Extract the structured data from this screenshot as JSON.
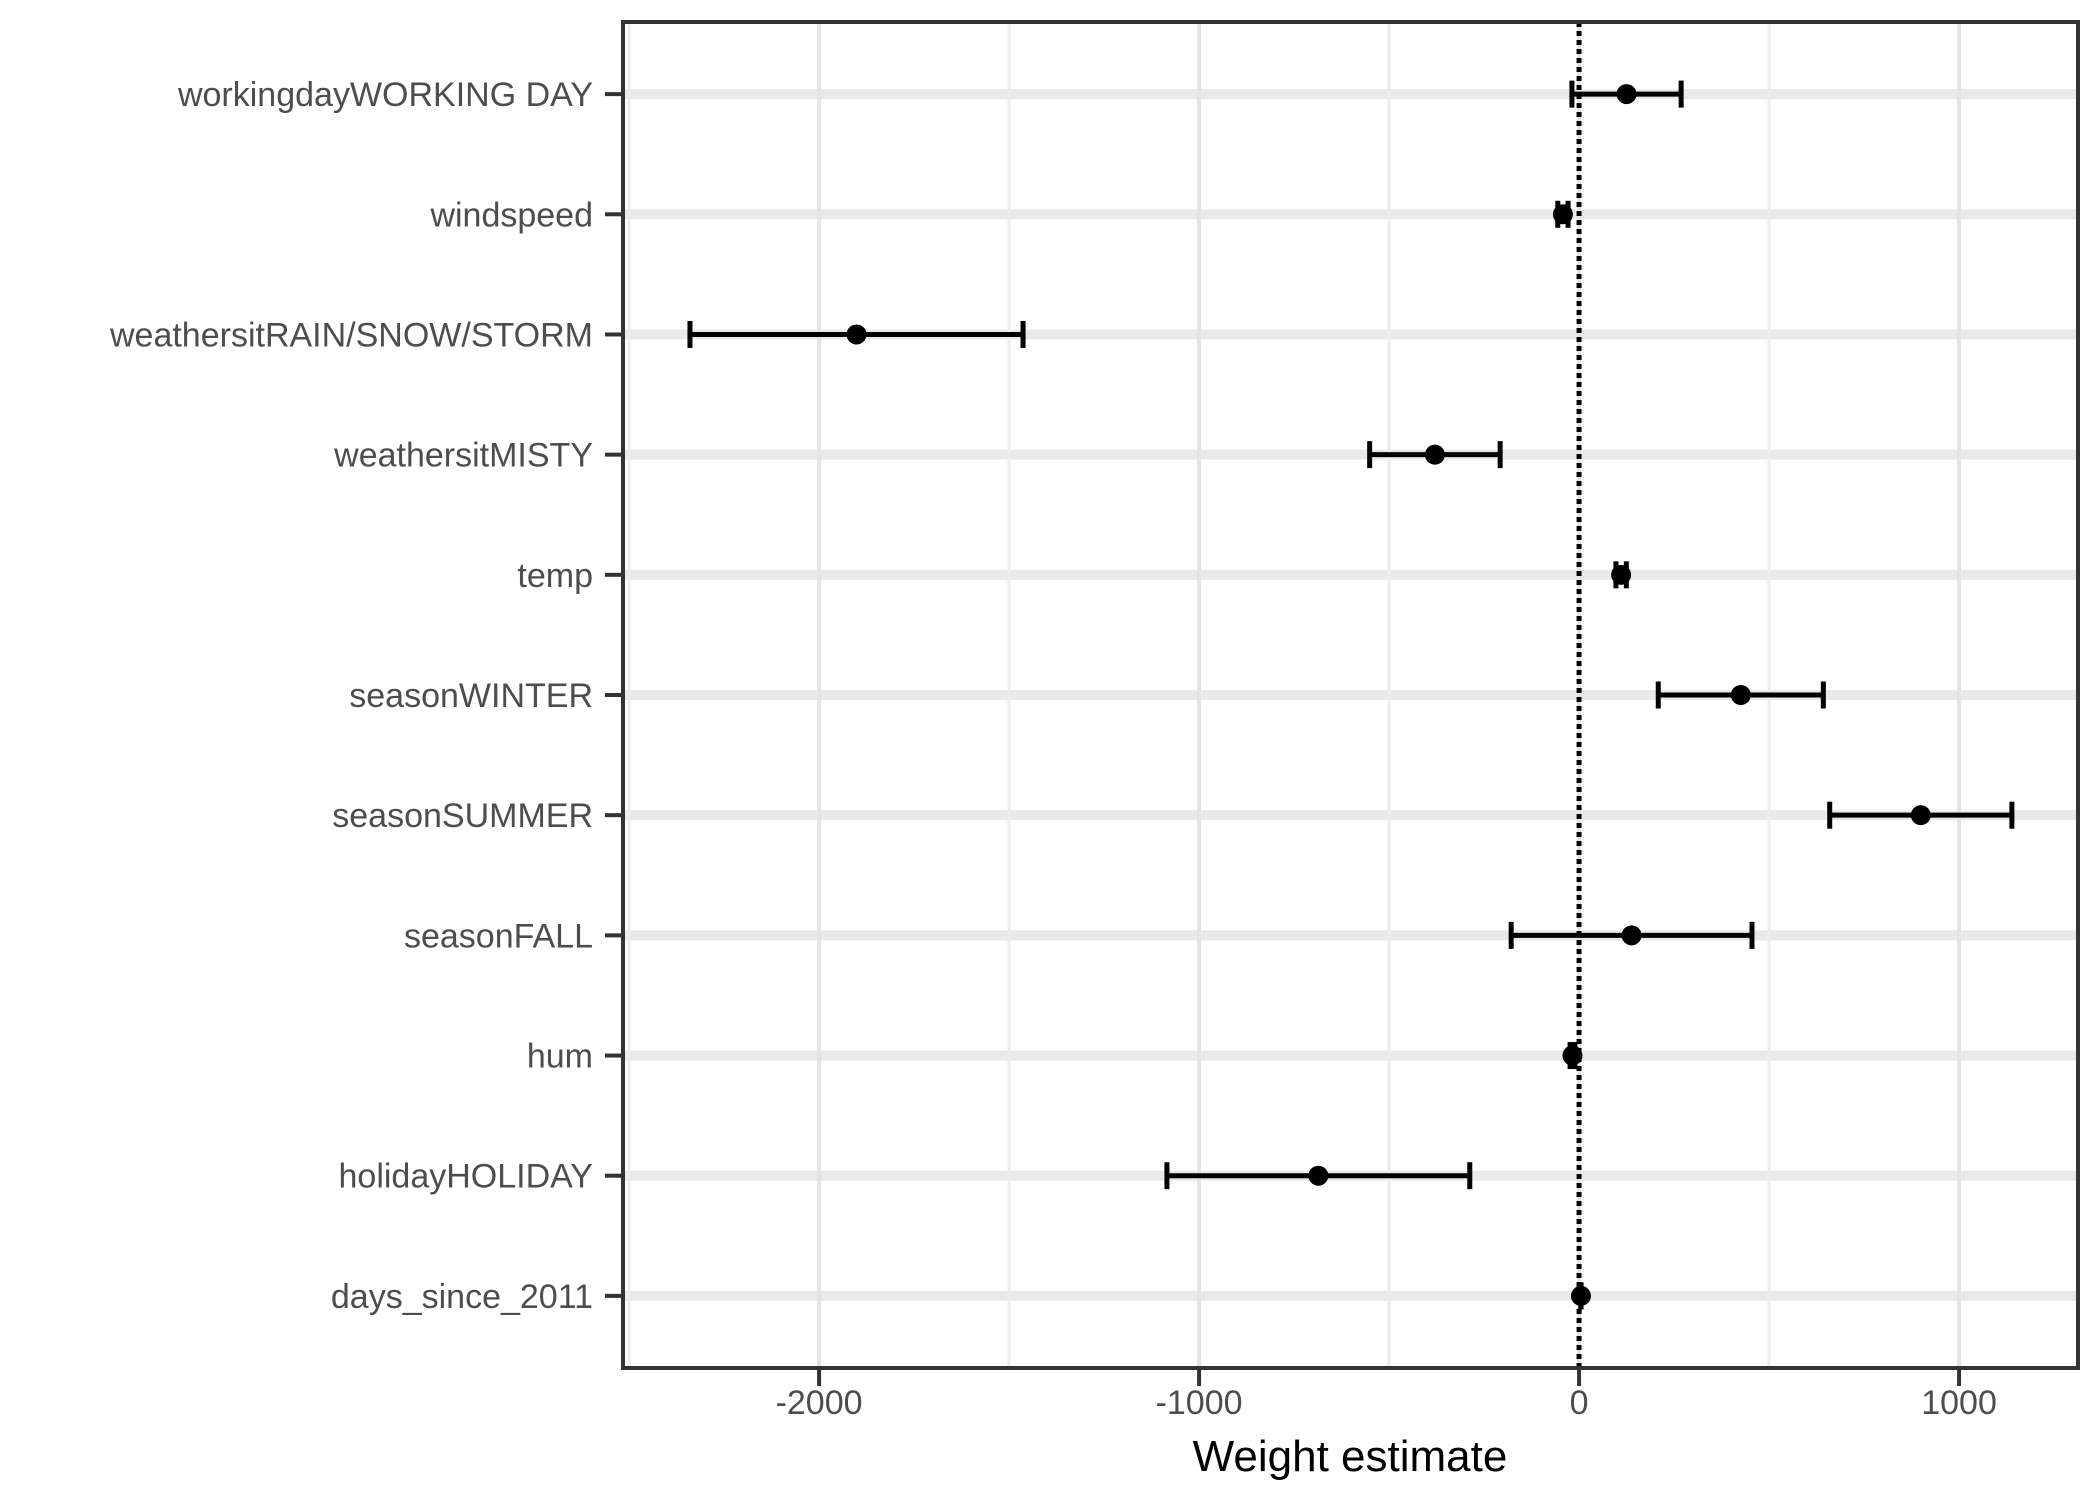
{
  "chart_data": {
    "type": "scatter",
    "subtype": "coefficient-plot-with-error-bars",
    "title": "",
    "xlabel": "Weight estimate",
    "ylabel": "",
    "xlim": [
      -2516,
      1313
    ],
    "grid": {
      "horizontal_major": true,
      "vertical_major": [
        -2000,
        -1000,
        0,
        1000
      ],
      "vertical_minor": [
        -2500,
        -1500,
        -500,
        500
      ]
    },
    "reference_line": {
      "x": 0,
      "style": "dotted",
      "color": "#000000"
    },
    "x_axis": {
      "tick_values": [
        -2000,
        -1000,
        0,
        1000
      ],
      "tick_labels": [
        "-2000",
        "-1000",
        "0",
        "1000"
      ]
    },
    "categories_top_to_bottom": [
      "workingdayWORKING DAY",
      "windspeed",
      "weathersitRAIN/SNOW/STORM",
      "weathersitMISTY",
      "temp",
      "seasonWINTER",
      "seasonSUMMER",
      "seasonFALL",
      "hum",
      "holidayHOLIDAY",
      "days_since_2011"
    ],
    "points": [
      {
        "label": "workingdayWORKING DAY",
        "estimate": 124.9,
        "ci_low": -18.8,
        "ci_high": 268.6
      },
      {
        "label": "windspeed",
        "estimate": -42.5,
        "ci_low": -56.0,
        "ci_high": -29.0
      },
      {
        "label": "weathersitRAIN/SNOW/STORM",
        "estimate": -1901.5,
        "ci_low": -2339.8,
        "ci_high": -1463.2
      },
      {
        "label": "weathersitMISTY",
        "estimate": -379.4,
        "ci_low": -551.1,
        "ci_high": -207.7
      },
      {
        "label": "temp",
        "estimate": 110.7,
        "ci_low": 97.0,
        "ci_high": 124.4
      },
      {
        "label": "seasonWINTER",
        "estimate": 425.6,
        "ci_low": 208.4,
        "ci_high": 642.8
      },
      {
        "label": "seasonSUMMER",
        "estimate": 899.3,
        "ci_low": 659.6,
        "ci_high": 1139.0
      },
      {
        "label": "seasonFALL",
        "estimate": 138.2,
        "ci_low": -178.7,
        "ci_high": 455.1
      },
      {
        "label": "hum",
        "estimate": -17.4,
        "ci_low": -23.7,
        "ci_high": -11.1
      },
      {
        "label": "holidayHOLIDAY",
        "estimate": -686.1,
        "ci_low": -1084.6,
        "ci_high": -287.6
      },
      {
        "label": "days_since_2011",
        "estimate": 4.9,
        "ci_low": 4.5,
        "ci_high": 5.3
      }
    ],
    "colors": {
      "point": "#000000",
      "error_bar": "#000000",
      "grid_major_h": "#E9E9E9",
      "grid_major_v": "#E4E4E4",
      "grid_minor_v": "#EDEDED",
      "axis_text": "#4D4D4D",
      "axis_title": "#000000",
      "panel_border": "#333333",
      "tick_mark": "#333333",
      "background": "#FFFFFF"
    }
  }
}
